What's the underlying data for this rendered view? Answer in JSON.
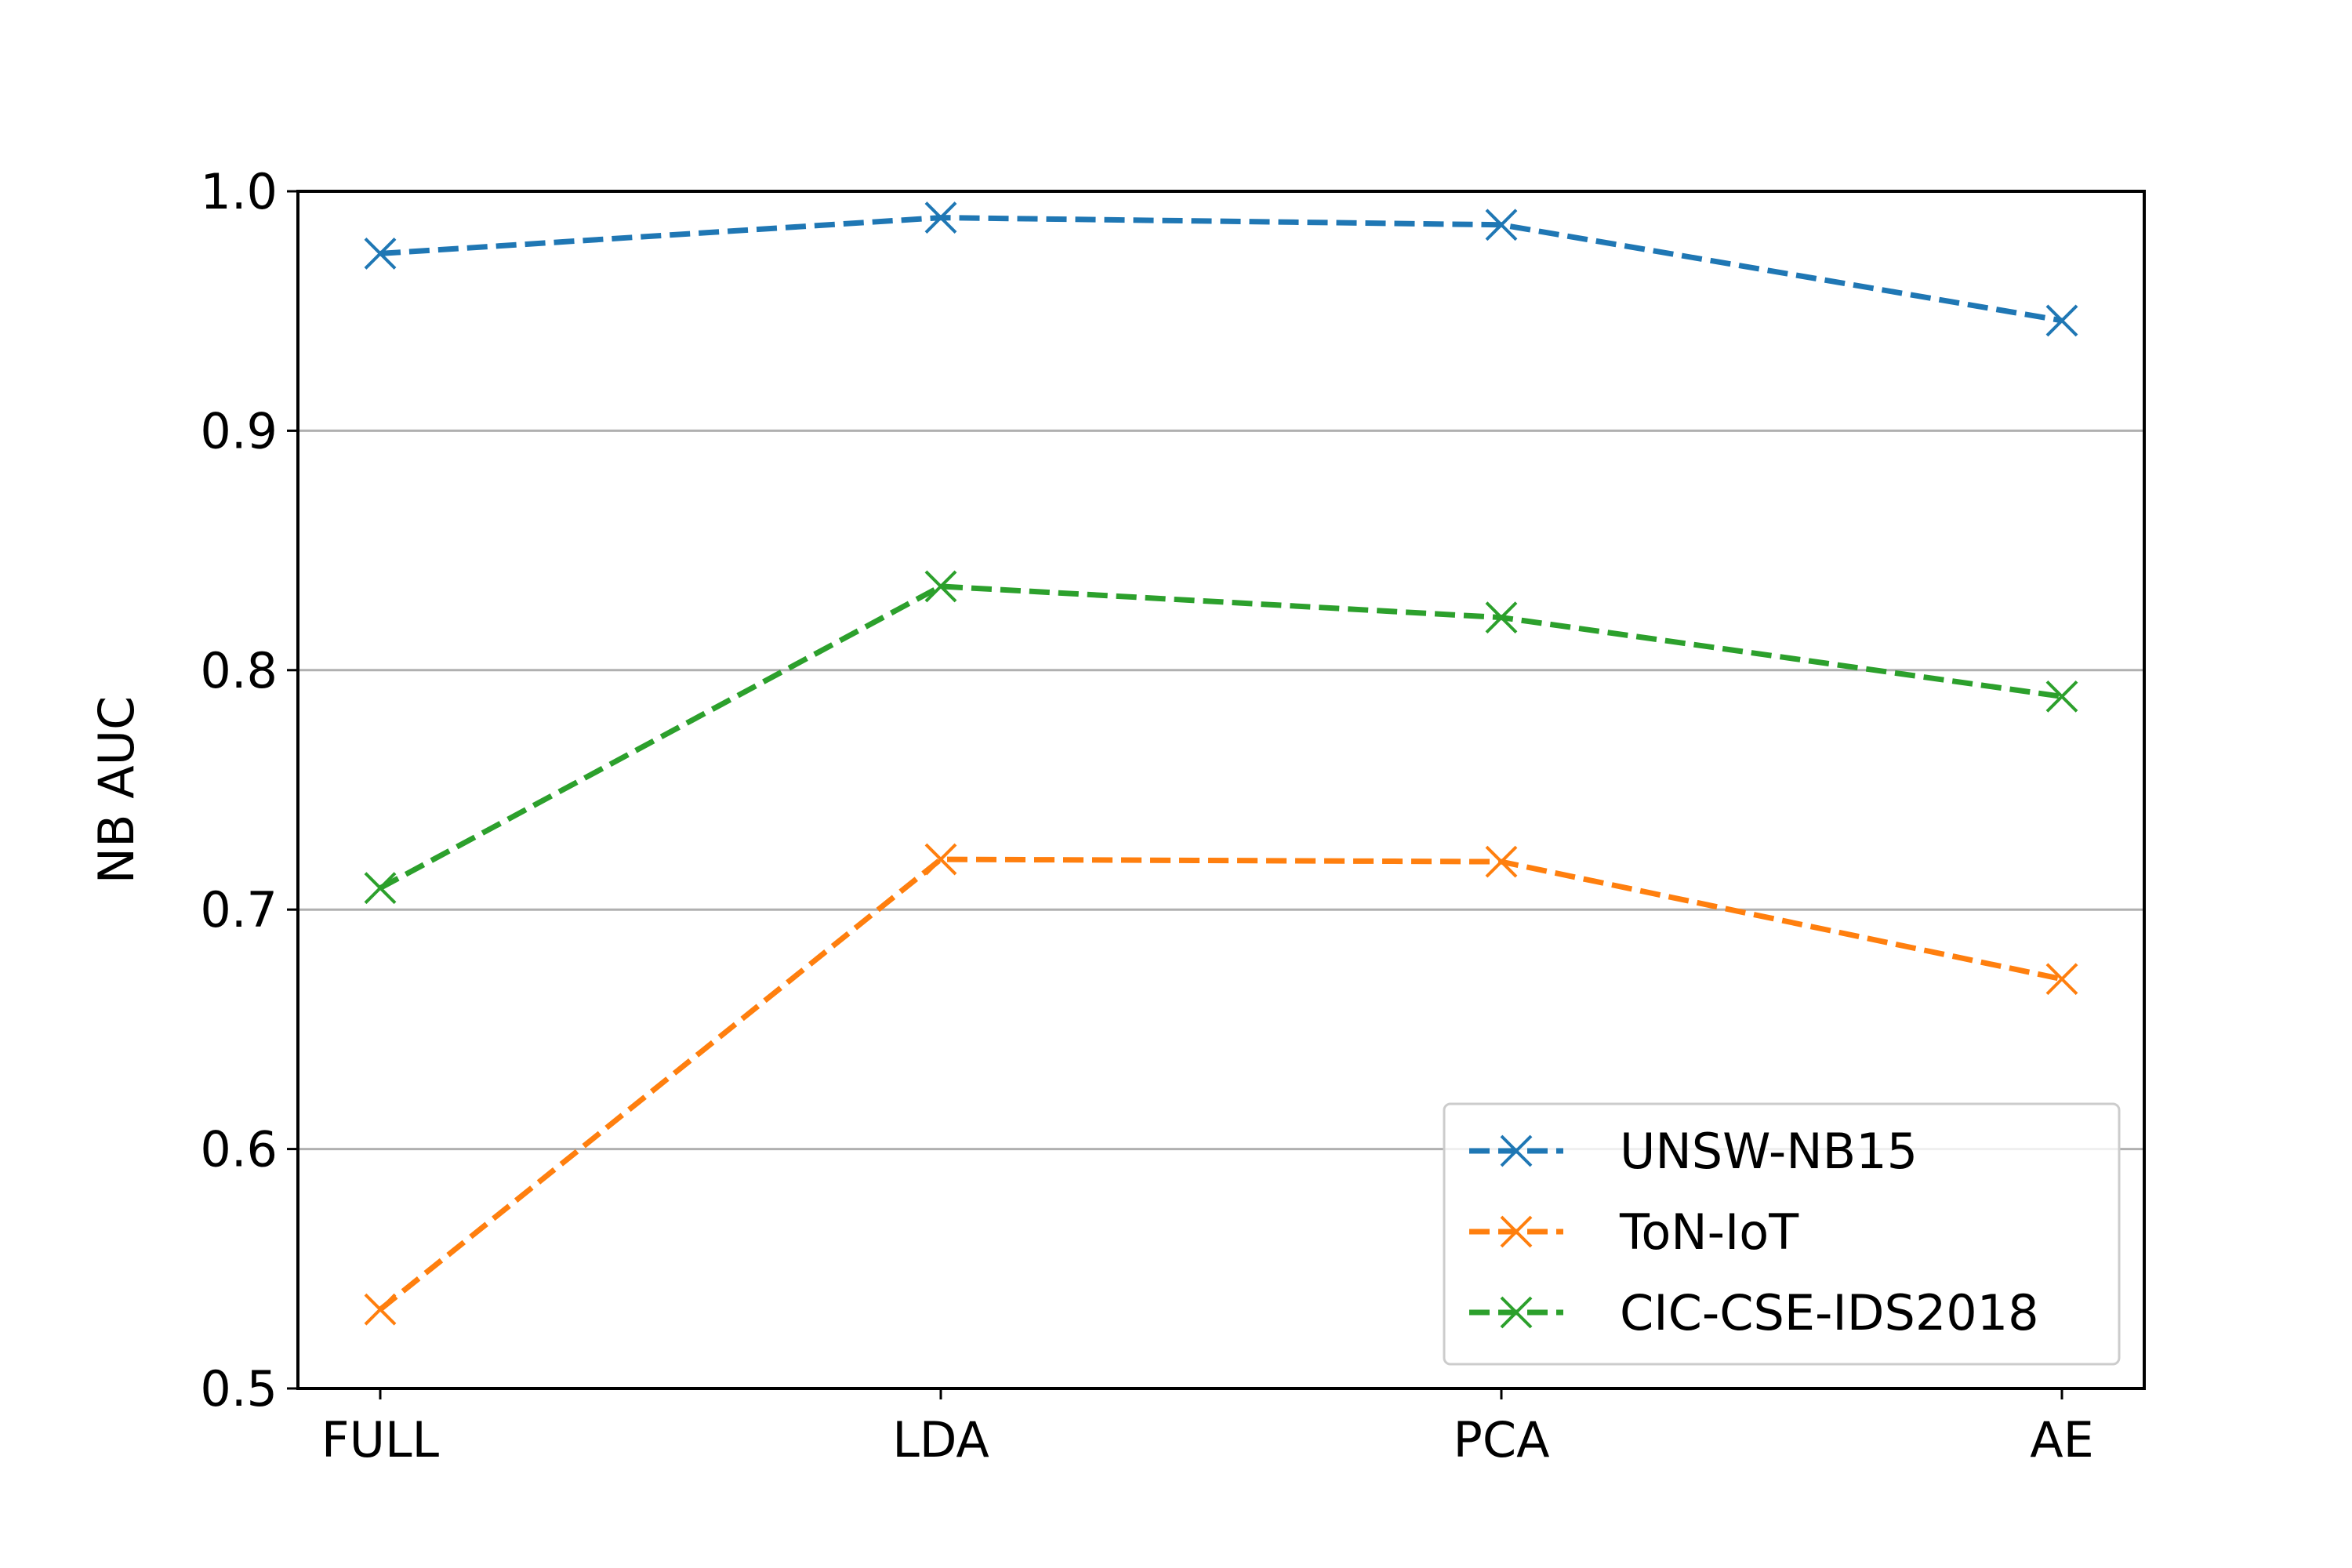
{
  "chart_data": {
    "type": "line",
    "title": "",
    "xlabel": "",
    "ylabel": "NB AUC",
    "categories": [
      "FULL",
      "LDA",
      "PCA",
      "AE"
    ],
    "ylim": [
      0.5,
      1.0
    ],
    "yticks": [
      0.5,
      0.6,
      0.7,
      0.8,
      0.9,
      1.0
    ],
    "ytick_labels": [
      "0.5",
      "0.6",
      "0.7",
      "0.8",
      "0.9",
      "1.0"
    ],
    "grid": "horizontal",
    "legend_position": "lower-right",
    "line_style": "dashed",
    "marker": "x",
    "series": [
      {
        "name": "UNSW-NB15",
        "color": "#1f77b4",
        "values": [
          0.974,
          0.989,
          0.986,
          0.946
        ]
      },
      {
        "name": "ToN-IoT",
        "color": "#ff7f0e",
        "values": [
          0.533,
          0.721,
          0.72,
          0.671
        ]
      },
      {
        "name": "CIC-CSE-IDS2018",
        "color": "#2ca02c",
        "values": [
          0.709,
          0.835,
          0.822,
          0.789
        ]
      }
    ]
  }
}
